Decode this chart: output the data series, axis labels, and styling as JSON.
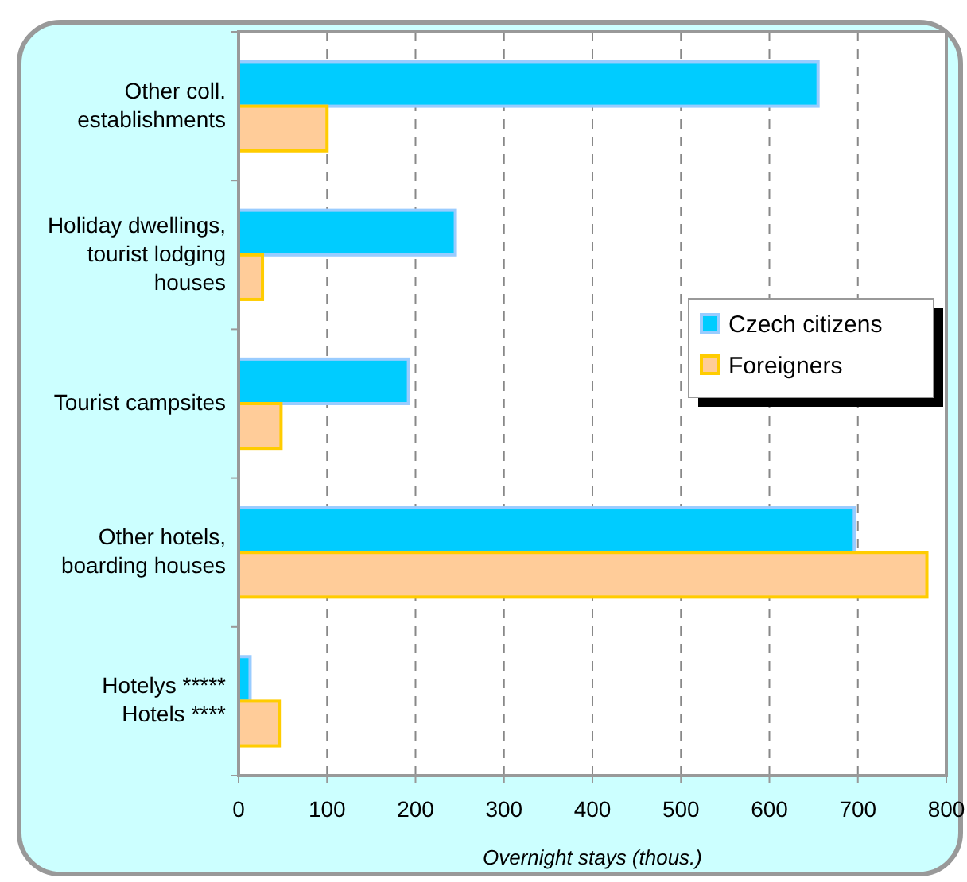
{
  "chart_data": {
    "type": "bar",
    "orientation": "horizontal",
    "xlabel": "Overnight stays (thous.)",
    "categories": [
      "Other coll.\nestablishments",
      "Holiday dwellings,\ntourist lodging\nhouses",
      "Tourist campsites",
      "Other hotels,\nboarding houses",
      "Hotelys *****\nHotels ****"
    ],
    "series": [
      {
        "name": "Czech citizens",
        "color": "#00ccff",
        "values": [
          655,
          245,
          192,
          696,
          13
        ]
      },
      {
        "name": "Foreigners",
        "color": "#ffcc99",
        "values": [
          100,
          27,
          48,
          778,
          46
        ]
      }
    ],
    "xlim": [
      0,
      800
    ],
    "xticks": [
      0,
      100,
      200,
      300,
      400,
      500,
      600,
      700,
      800
    ],
    "grid": "x",
    "legend": "right"
  }
}
